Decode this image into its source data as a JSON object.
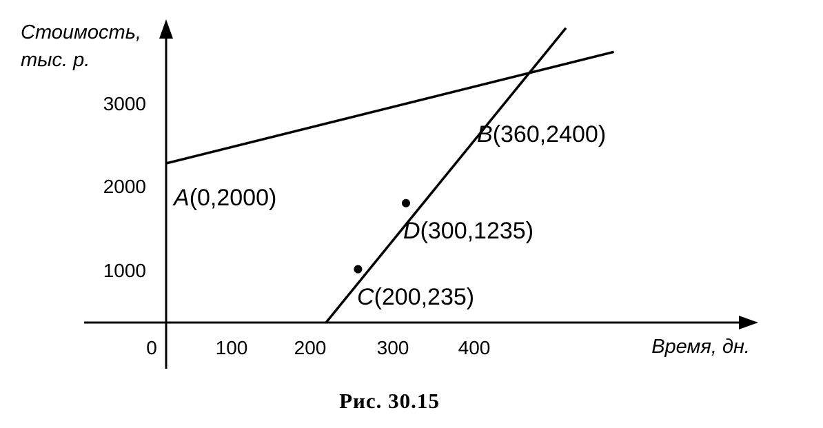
{
  "caption": "Рис. 30.15",
  "chart_data": {
    "type": "line",
    "ylabel_line1": "Стоимость,",
    "ylabel_line2": "тыс. р.",
    "xlabel": "Время, дн.",
    "origin_label": "0",
    "x_ticks": [
      "100",
      "200",
      "300",
      "400"
    ],
    "y_ticks": [
      "1000",
      "2000",
      "3000"
    ],
    "series": [
      {
        "x": [
          0,
          560
        ],
        "y": [
          2000,
          3400
        ]
      },
      {
        "x": [
          200,
          500
        ],
        "y": [
          0,
          3700
        ]
      }
    ],
    "points": [
      {
        "letter": "A",
        "coords": "(0,2000)",
        "x": 0,
        "y": 2000,
        "marker": false
      },
      {
        "letter": "B",
        "coords": "(360,2400)",
        "x": 405,
        "y": 2850,
        "marker": false
      },
      {
        "letter": "D",
        "coords": "(300,1235)",
        "x": 300,
        "y": 1500,
        "marker": true
      },
      {
        "letter": "C",
        "coords": "(200,235)",
        "x": 240,
        "y": 670,
        "marker": true
      }
    ]
  }
}
